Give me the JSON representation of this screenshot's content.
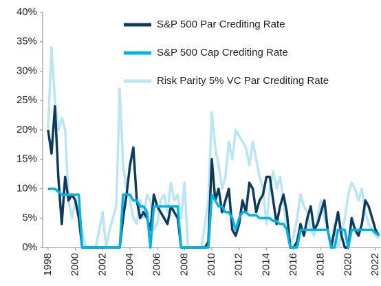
{
  "chart_data": {
    "type": "line",
    "x": [
      1998,
      1998.25,
      1998.5,
      1998.75,
      1999,
      1999.25,
      1999.5,
      1999.75,
      2000,
      2000.25,
      2000.5,
      2000.75,
      2001,
      2001.25,
      2001.5,
      2001.75,
      2002,
      2002.25,
      2002.5,
      2002.75,
      2003,
      2003.25,
      2003.5,
      2003.75,
      2004,
      2004.25,
      2004.5,
      2004.75,
      2005,
      2005.25,
      2005.5,
      2005.75,
      2006,
      2006.25,
      2006.5,
      2006.75,
      2007,
      2007.25,
      2007.5,
      2007.75,
      2008,
      2008.25,
      2008.5,
      2008.75,
      2009,
      2009.25,
      2009.5,
      2009.75,
      2010,
      2010.25,
      2010.5,
      2010.75,
      2011,
      2011.25,
      2011.5,
      2011.75,
      2012,
      2012.25,
      2012.5,
      2012.75,
      2013,
      2013.25,
      2013.5,
      2013.75,
      2014,
      2014.25,
      2014.5,
      2014.75,
      2015,
      2015.25,
      2015.5,
      2015.75,
      2016,
      2016.25,
      2016.5,
      2016.75,
      2017,
      2017.25,
      2017.5,
      2017.75,
      2018,
      2018.25,
      2018.5,
      2018.75,
      2019,
      2019.25,
      2019.5,
      2019.75,
      2020,
      2020.25,
      2020.5,
      2020.75,
      2021,
      2021.25,
      2021.5,
      2021.75,
      2022,
      2022.25
    ],
    "series": [
      {
        "name": "S&P 500 Par Crediting Rate",
        "color": "#0d3b5e",
        "values": [
          20,
          16,
          24,
          12,
          4,
          12,
          8,
          9,
          8,
          5,
          0,
          0,
          0,
          0,
          0,
          0,
          0,
          0,
          0,
          0,
          0,
          0,
          5,
          9,
          14,
          17,
          8,
          5,
          6,
          5,
          3,
          9,
          7,
          6,
          5,
          4,
          7,
          6,
          5,
          0,
          0,
          0,
          0,
          0,
          0,
          0,
          0,
          1,
          15,
          8,
          10,
          6,
          8,
          10,
          3,
          2,
          4,
          8,
          6,
          11,
          10,
          6,
          8,
          9,
          12,
          12,
          8,
          4,
          7,
          9,
          6,
          0,
          0,
          1,
          4,
          2,
          5,
          7,
          3,
          4,
          6,
          8,
          3,
          0,
          3,
          6,
          2,
          0,
          0,
          5,
          3,
          2,
          4,
          8,
          7,
          5,
          3,
          2
        ]
      },
      {
        "name": "S&P 500 Cap Crediting Rate",
        "color": "#00b3e3",
        "values": [
          10,
          10,
          10,
          9.5,
          9,
          9,
          9,
          9,
          9,
          9,
          0,
          0,
          0,
          0,
          0,
          0,
          0,
          0,
          0,
          0,
          0,
          0,
          9,
          9,
          9,
          8,
          8,
          7,
          7,
          6,
          0,
          7,
          7,
          7,
          7,
          7,
          7,
          7,
          7,
          0,
          0,
          0,
          0,
          0,
          0,
          0,
          0,
          0,
          9,
          8,
          7,
          7,
          6,
          6,
          5,
          3,
          5,
          6,
          6,
          5.5,
          5.5,
          5.5,
          5,
          5,
          5,
          5,
          4.5,
          4.5,
          4,
          4,
          3,
          0,
          0,
          0,
          3,
          3,
          3,
          3,
          3,
          3,
          3,
          3,
          3,
          0,
          0,
          3,
          3,
          3,
          0,
          3,
          3,
          3,
          3,
          3,
          3,
          3,
          2.5,
          2
        ]
      },
      {
        "name": "Risk Parity 5% VC Par Crediting Rate",
        "color": "#b9e5f6",
        "values": [
          20,
          34,
          25,
          20,
          22,
          20,
          8,
          5,
          8,
          5,
          3,
          0,
          0,
          0,
          0,
          3,
          6,
          0,
          3,
          5,
          7,
          27,
          14,
          10,
          8,
          5,
          4,
          8,
          5,
          9,
          8,
          3,
          4,
          8,
          9,
          6,
          11,
          8,
          9,
          5,
          11,
          0,
          0,
          0,
          0,
          0,
          4,
          8,
          23,
          17,
          14,
          10,
          12,
          18,
          15,
          20,
          19,
          18,
          17,
          14,
          18,
          15,
          12,
          10,
          4,
          10,
          13,
          10,
          12,
          8,
          3,
          0,
          2,
          5,
          9,
          7,
          6,
          3,
          2,
          5,
          8,
          5,
          3,
          0,
          4,
          0,
          2,
          5,
          9,
          11,
          10,
          8,
          10,
          6,
          4,
          3,
          2,
          1.5
        ]
      }
    ],
    "xlim": [
      1997.6,
      2022.4
    ],
    "xticks": [
      1998,
      2000,
      2002,
      2004,
      2006,
      2008,
      2010,
      2012,
      2014,
      2016,
      2018,
      2020,
      2022
    ],
    "ylim": [
      0,
      40
    ],
    "yticks": [
      {
        "value": 0,
        "label": "0%"
      },
      {
        "value": 5,
        "label": "5%"
      },
      {
        "value": 10,
        "label": "10%"
      },
      {
        "value": 15,
        "label": "15%"
      },
      {
        "value": 20,
        "label": "20%"
      },
      {
        "value": 25,
        "label": "25%"
      },
      {
        "value": 30,
        "label": "30%"
      },
      {
        "value": 35,
        "label": "35%"
      },
      {
        "value": 40,
        "label": "40%"
      }
    ],
    "legend": "top"
  }
}
